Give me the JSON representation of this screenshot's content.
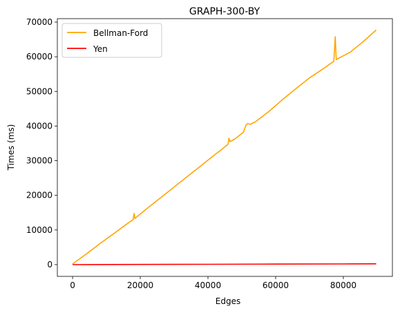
{
  "chart_data": {
    "type": "line",
    "title": "GRAPH-300-BY",
    "xlabel": "Edges",
    "ylabel": "Times (ms)",
    "xlim": [
      -4500,
      94500
    ],
    "ylim": [
      -3400,
      71000
    ],
    "xticks": [
      0,
      20000,
      40000,
      60000,
      80000
    ],
    "xtick_labels": [
      "0",
      "20000",
      "40000",
      "60000",
      "80000"
    ],
    "yticks": [
      0,
      10000,
      20000,
      30000,
      40000,
      50000,
      60000,
      70000
    ],
    "ytick_labels": [
      "0",
      "10000",
      "20000",
      "30000",
      "40000",
      "50000",
      "60000",
      "70000"
    ],
    "grid": false,
    "legend_position": "upper-left",
    "series": [
      {
        "name": "Bellman-Ford",
        "color": "#ffa500",
        "points": [
          [
            0,
            200
          ],
          [
            4000,
            3000
          ],
          [
            8000,
            6000
          ],
          [
            12000,
            8800
          ],
          [
            16000,
            11700
          ],
          [
            17900,
            13000
          ],
          [
            18200,
            14800
          ],
          [
            18400,
            13300
          ],
          [
            22000,
            16200
          ],
          [
            26000,
            19300
          ],
          [
            30000,
            22400
          ],
          [
            34000,
            25500
          ],
          [
            38000,
            28600
          ],
          [
            42000,
            31700
          ],
          [
            44000,
            33200
          ],
          [
            45900,
            34700
          ],
          [
            46200,
            36500
          ],
          [
            46500,
            35500
          ],
          [
            48000,
            36300
          ],
          [
            50500,
            38200
          ],
          [
            51200,
            40200
          ],
          [
            51700,
            40700
          ],
          [
            52500,
            40500
          ],
          [
            54000,
            41200
          ],
          [
            58000,
            44200
          ],
          [
            62000,
            47600
          ],
          [
            66000,
            50800
          ],
          [
            70000,
            53900
          ],
          [
            74000,
            56500
          ],
          [
            77200,
            58700
          ],
          [
            77600,
            65800
          ],
          [
            77900,
            59200
          ],
          [
            82000,
            61300
          ],
          [
            86000,
            64500
          ],
          [
            89700,
            67700
          ]
        ]
      },
      {
        "name": "Yen",
        "color": "#ff0000",
        "points": [
          [
            0,
            0
          ],
          [
            20000,
            50
          ],
          [
            40000,
            100
          ],
          [
            60000,
            150
          ],
          [
            80000,
            200
          ],
          [
            89700,
            240
          ]
        ]
      }
    ]
  }
}
